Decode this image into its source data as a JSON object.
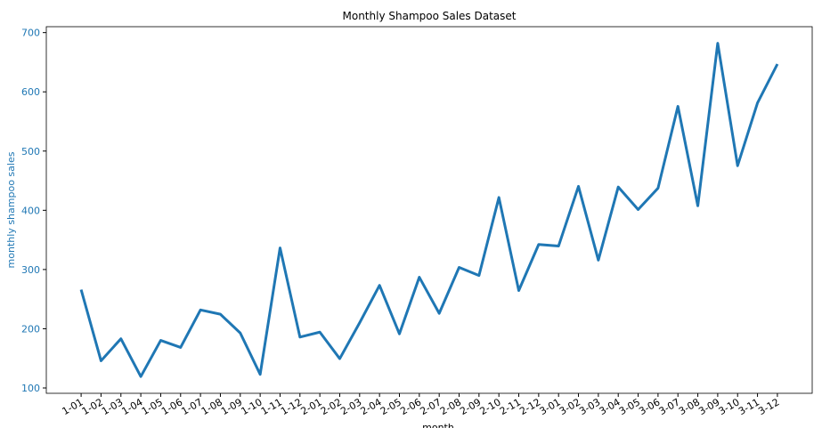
{
  "chart_data": {
    "type": "line",
    "title": "Monthly Shampoo Sales Dataset",
    "x_label": "month",
    "y_label": "monthly shampoo sales",
    "categories": [
      "1-01",
      "1-02",
      "1-03",
      "1-04",
      "1-05",
      "1-06",
      "1-07",
      "1-08",
      "1-09",
      "1-10",
      "1-11",
      "1-12",
      "2-01",
      "2-02",
      "2-03",
      "2-04",
      "2-05",
      "2-06",
      "2-07",
      "2-08",
      "2-09",
      "2-10",
      "2-11",
      "2-12",
      "3-01",
      "3-02",
      "3-03",
      "3-04",
      "3-05",
      "3-06",
      "3-07",
      "3-08",
      "3-09",
      "3-10",
      "3-11",
      "3-12"
    ],
    "series": [
      {
        "name": "monthly shampoo sales",
        "color": "#1f77b4",
        "values": [
          266.0,
          145.9,
          183.1,
          119.3,
          180.3,
          168.5,
          231.8,
          224.5,
          192.8,
          122.9,
          336.5,
          185.9,
          194.3,
          149.5,
          210.1,
          273.3,
          191.4,
          287.0,
          226.0,
          303.6,
          289.9,
          421.6,
          264.5,
          342.3,
          339.7,
          440.4,
          315.9,
          439.3,
          401.3,
          437.4,
          575.5,
          407.6,
          682.0,
          475.3,
          581.3,
          646.9
        ]
      }
    ],
    "ylim": [
      91,
      710
    ],
    "yticks": [
      100,
      200,
      300,
      400,
      500,
      600,
      700
    ],
    "axis_color": "#1f77b4",
    "grid": false
  }
}
